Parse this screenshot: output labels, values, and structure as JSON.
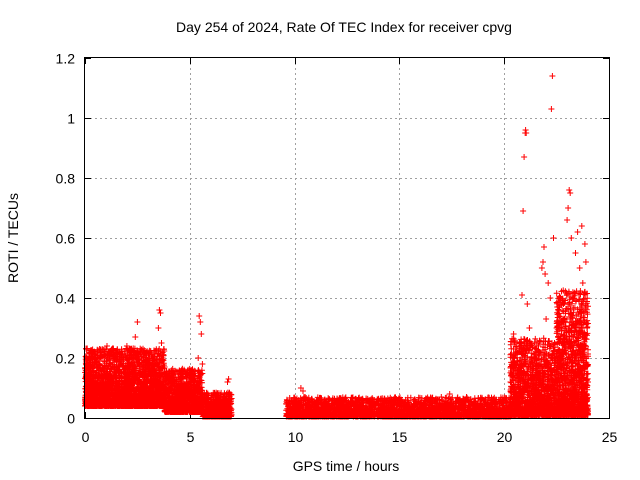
{
  "chart_data": {
    "type": "scatter",
    "title": "Day 254 of 2024, Rate Of TEC Index for receiver cpvg",
    "xlabel": "GPS time / hours",
    "ylabel": "ROTI / TECUs",
    "xlim": [
      0,
      25
    ],
    "ylim": [
      0,
      1.2
    ],
    "xticks": [
      0,
      5,
      10,
      15,
      20,
      25
    ],
    "yticks": [
      0,
      0.2,
      0.4,
      0.6,
      0.8,
      1,
      1.2
    ],
    "xtick_labels": [
      "0",
      "5",
      "10",
      "15",
      "20",
      "25"
    ],
    "ytick_labels": [
      "0",
      "0.2",
      "0.4",
      "0.6",
      "0.8",
      "1",
      "1.2"
    ],
    "grid": true,
    "marker": "+",
    "color": "#ff0000",
    "series": [
      {
        "name": "ROTI",
        "points": [
          [
            0.05,
            0.19
          ],
          [
            0.1,
            0.18
          ],
          [
            0.2,
            0.16
          ],
          [
            0.3,
            0.14
          ],
          [
            0.4,
            0.12
          ],
          [
            0.5,
            0.15
          ],
          [
            0.6,
            0.11
          ],
          [
            0.7,
            0.09
          ],
          [
            0.8,
            0.14
          ],
          [
            0.9,
            0.13
          ],
          [
            1.0,
            0.23
          ],
          [
            1.05,
            0.24
          ],
          [
            1.2,
            0.12
          ],
          [
            1.4,
            0.1
          ],
          [
            1.6,
            0.15
          ],
          [
            1.8,
            0.17
          ],
          [
            1.9,
            0.22
          ],
          [
            2.0,
            0.24
          ],
          [
            2.1,
            0.2
          ],
          [
            2.2,
            0.18
          ],
          [
            2.3,
            0.16
          ],
          [
            2.4,
            0.27
          ],
          [
            2.5,
            0.32
          ],
          [
            2.6,
            0.15
          ],
          [
            2.8,
            0.12
          ],
          [
            3.0,
            0.14
          ],
          [
            3.1,
            0.19
          ],
          [
            3.2,
            0.18
          ],
          [
            3.3,
            0.17
          ],
          [
            3.5,
            0.3
          ],
          [
            3.55,
            0.36
          ],
          [
            3.6,
            0.35
          ],
          [
            3.65,
            0.25
          ],
          [
            3.7,
            0.2
          ],
          [
            3.8,
            0.17
          ],
          [
            3.9,
            0.15
          ],
          [
            4.0,
            0.12
          ],
          [
            4.2,
            0.1
          ],
          [
            4.4,
            0.08
          ],
          [
            4.6,
            0.12
          ],
          [
            4.8,
            0.08
          ],
          [
            5.0,
            0.1
          ],
          [
            5.2,
            0.12
          ],
          [
            5.4,
            0.2
          ],
          [
            5.45,
            0.34
          ],
          [
            5.5,
            0.32
          ],
          [
            5.55,
            0.28
          ],
          [
            5.6,
            0.18
          ],
          [
            5.8,
            0.08
          ],
          [
            6.0,
            0.06
          ],
          [
            6.2,
            0.05
          ],
          [
            6.4,
            0.04
          ],
          [
            6.6,
            0.03
          ],
          [
            6.8,
            0.12
          ],
          [
            6.85,
            0.13
          ],
          [
            6.9,
            0.03
          ],
          [
            9.7,
            0.04
          ],
          [
            9.8,
            0.03
          ],
          [
            10.0,
            0.05
          ],
          [
            10.2,
            0.06
          ],
          [
            10.3,
            0.1
          ],
          [
            10.4,
            0.09
          ],
          [
            10.5,
            0.07
          ],
          [
            10.6,
            0.05
          ],
          [
            10.8,
            0.03
          ],
          [
            11.0,
            0.04
          ],
          [
            11.3,
            0.05
          ],
          [
            11.6,
            0.04
          ],
          [
            12.0,
            0.05
          ],
          [
            12.3,
            0.04
          ],
          [
            12.6,
            0.05
          ],
          [
            13.0,
            0.06
          ],
          [
            13.4,
            0.05
          ],
          [
            13.8,
            0.06
          ],
          [
            14.2,
            0.05
          ],
          [
            14.6,
            0.04
          ],
          [
            15.0,
            0.04
          ],
          [
            15.4,
            0.03
          ],
          [
            15.8,
            0.05
          ],
          [
            16.2,
            0.06
          ],
          [
            16.6,
            0.05
          ],
          [
            17.0,
            0.07
          ],
          [
            17.4,
            0.08
          ],
          [
            17.8,
            0.06
          ],
          [
            18.2,
            0.07
          ],
          [
            18.6,
            0.05
          ],
          [
            19.0,
            0.06
          ],
          [
            19.4,
            0.05
          ],
          [
            19.8,
            0.04
          ],
          [
            20.1,
            0.06
          ],
          [
            20.3,
            0.12
          ],
          [
            20.4,
            0.2
          ],
          [
            20.45,
            0.28
          ],
          [
            20.5,
            0.18
          ],
          [
            20.6,
            0.14
          ],
          [
            20.7,
            0.22
          ],
          [
            20.8,
            0.25
          ],
          [
            20.85,
            0.41
          ],
          [
            20.9,
            0.69
          ],
          [
            20.95,
            0.87
          ],
          [
            21.0,
            0.95
          ],
          [
            21.02,
            0.96
          ],
          [
            21.05,
            0.95
          ],
          [
            21.1,
            0.38
          ],
          [
            21.2,
            0.3
          ],
          [
            21.3,
            0.2
          ],
          [
            21.5,
            0.16
          ],
          [
            21.7,
            0.15
          ],
          [
            21.8,
            0.5
          ],
          [
            21.85,
            0.52
          ],
          [
            21.9,
            0.57
          ],
          [
            21.95,
            0.48
          ],
          [
            22.0,
            0.33
          ],
          [
            22.1,
            0.45
          ],
          [
            22.2,
            0.4
          ],
          [
            22.25,
            1.03
          ],
          [
            22.3,
            1.14
          ],
          [
            22.35,
            0.6
          ],
          [
            22.4,
            0.25
          ],
          [
            22.5,
            0.3
          ],
          [
            22.6,
            0.2
          ],
          [
            22.8,
            0.18
          ],
          [
            22.9,
            0.33
          ],
          [
            23.0,
            0.66
          ],
          [
            23.05,
            0.7
          ],
          [
            23.1,
            0.76
          ],
          [
            23.15,
            0.75
          ],
          [
            23.2,
            0.6
          ],
          [
            23.3,
            0.4
          ],
          [
            23.4,
            0.55
          ],
          [
            23.5,
            0.62
          ],
          [
            23.6,
            0.5
          ],
          [
            23.65,
            0.35
          ],
          [
            23.7,
            0.64
          ],
          [
            23.75,
            0.45
          ],
          [
            23.8,
            0.32
          ],
          [
            23.85,
            0.58
          ],
          [
            23.9,
            0.52
          ],
          [
            23.95,
            0.3
          ],
          [
            24.0,
            0.12
          ]
        ]
      }
    ]
  }
}
